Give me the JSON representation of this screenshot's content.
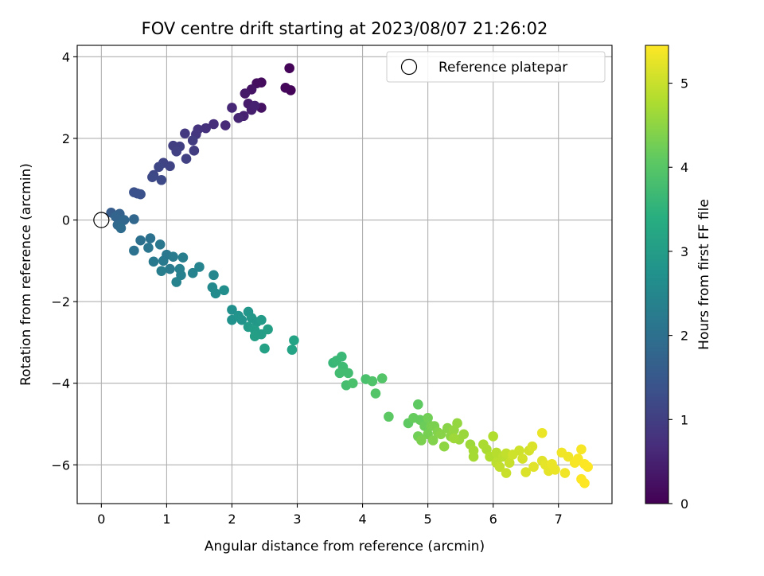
{
  "chart_data": {
    "type": "scatter",
    "title": "FOV centre drift starting at 2023/08/07 21:26:02",
    "xlabel": "Angular distance from reference (arcmin)",
    "ylabel": "Rotation from reference (arcmin)",
    "xlim": [
      -0.37,
      7.82
    ],
    "ylim": [
      -6.95,
      4.28
    ],
    "xticks": [
      "0",
      "1",
      "2",
      "3",
      "4",
      "5",
      "6",
      "7"
    ],
    "yticks": [
      "−6",
      "−4",
      "−2",
      "0",
      "2",
      "4"
    ],
    "grid": true,
    "legend": {
      "placement": "top-right",
      "entries": [
        "Reference platepar"
      ]
    },
    "reference_point": {
      "x": 0,
      "y": 0
    },
    "colormap": "viridis",
    "colorbar": {
      "label": "Hours from first FF file",
      "range": [
        0,
        5.45
      ],
      "ticks": [
        "0",
        "1",
        "2",
        "3",
        "4",
        "5"
      ]
    },
    "series": [
      {
        "points": [
          [
            2.88,
            3.72,
            0.05
          ],
          [
            2.9,
            3.18,
            0.05
          ],
          [
            2.82,
            3.24,
            0.1
          ],
          [
            2.45,
            3.37,
            0.15
          ],
          [
            2.38,
            3.35,
            0.2
          ],
          [
            2.45,
            2.75,
            0.25
          ],
          [
            2.3,
            3.2,
            0.3
          ],
          [
            2.2,
            3.1,
            0.35
          ],
          [
            2.25,
            2.85,
            0.4
          ],
          [
            2.3,
            2.7,
            0.45
          ],
          [
            2.18,
            2.55,
            0.5
          ],
          [
            2.35,
            2.8,
            0.5
          ],
          [
            2.1,
            2.5,
            0.55
          ],
          [
            2.0,
            2.75,
            0.6
          ],
          [
            1.9,
            2.32,
            0.65
          ],
          [
            1.72,
            2.35,
            0.7
          ],
          [
            1.6,
            2.25,
            0.75
          ],
          [
            1.48,
            2.22,
            0.8
          ],
          [
            1.45,
            2.1,
            0.85
          ],
          [
            1.28,
            2.12,
            0.9
          ],
          [
            1.4,
            1.95,
            0.95
          ],
          [
            1.42,
            1.7,
            0.95
          ],
          [
            1.2,
            1.8,
            1.0
          ],
          [
            1.1,
            1.82,
            1.0
          ],
          [
            1.15,
            1.68,
            1.05
          ],
          [
            1.3,
            1.5,
            1.05
          ],
          [
            0.95,
            1.4,
            1.1
          ],
          [
            1.05,
            1.32,
            1.1
          ],
          [
            0.88,
            1.3,
            1.15
          ],
          [
            0.8,
            1.1,
            1.15
          ],
          [
            0.78,
            1.05,
            1.2
          ],
          [
            0.92,
            0.98,
            1.2
          ],
          [
            0.55,
            0.65,
            1.3
          ],
          [
            0.5,
            0.68,
            1.35
          ],
          [
            0.6,
            0.63,
            1.35
          ],
          [
            0.15,
            0.18,
            1.6
          ],
          [
            0.28,
            0.15,
            1.7
          ],
          [
            0.22,
            0.08,
            1.75
          ],
          [
            0.35,
            0.0,
            1.8
          ],
          [
            0.5,
            0.02,
            1.8
          ],
          [
            0.25,
            -0.12,
            1.85
          ],
          [
            0.3,
            -0.2,
            1.9
          ],
          [
            0.6,
            -0.5,
            2.0
          ],
          [
            0.75,
            -0.45,
            2.05
          ],
          [
            0.5,
            -0.75,
            2.05
          ],
          [
            0.72,
            -0.68,
            2.1
          ],
          [
            0.9,
            -0.6,
            2.15
          ],
          [
            1.0,
            -0.85,
            2.15
          ],
          [
            0.8,
            -1.02,
            2.2
          ],
          [
            0.95,
            -1.0,
            2.2
          ],
          [
            1.1,
            -0.9,
            2.25
          ],
          [
            1.05,
            -1.2,
            2.25
          ],
          [
            0.92,
            -1.25,
            2.3
          ],
          [
            1.25,
            -0.92,
            2.3
          ],
          [
            1.2,
            -1.2,
            2.35
          ],
          [
            1.22,
            -1.35,
            2.35
          ],
          [
            1.15,
            -1.52,
            2.4
          ],
          [
            1.4,
            -1.3,
            2.4
          ],
          [
            1.5,
            -1.15,
            2.45
          ],
          [
            1.72,
            -1.35,
            2.5
          ],
          [
            1.7,
            -1.65,
            2.55
          ],
          [
            1.75,
            -1.8,
            2.6
          ],
          [
            1.88,
            -1.72,
            2.65
          ],
          [
            2.0,
            -2.2,
            2.7
          ],
          [
            2.0,
            -2.45,
            2.75
          ],
          [
            2.1,
            -2.35,
            2.8
          ],
          [
            2.15,
            -2.45,
            2.8
          ],
          [
            2.25,
            -2.25,
            2.85
          ],
          [
            2.3,
            -2.4,
            2.9
          ],
          [
            2.38,
            -2.5,
            2.9
          ],
          [
            2.25,
            -2.62,
            2.95
          ],
          [
            2.45,
            -2.45,
            2.95
          ],
          [
            2.35,
            -2.7,
            3.0
          ],
          [
            2.45,
            -2.8,
            3.0
          ],
          [
            2.55,
            -2.68,
            3.05
          ],
          [
            2.35,
            -2.85,
            3.05
          ],
          [
            2.5,
            -3.15,
            3.1
          ],
          [
            2.92,
            -3.18,
            3.15
          ],
          [
            2.95,
            -2.95,
            3.15
          ],
          [
            3.55,
            -3.5,
            3.6
          ],
          [
            3.6,
            -3.45,
            3.65
          ],
          [
            3.68,
            -3.35,
            3.65
          ],
          [
            3.7,
            -3.6,
            3.7
          ],
          [
            3.65,
            -3.75,
            3.75
          ],
          [
            3.78,
            -3.75,
            3.75
          ],
          [
            3.75,
            -4.05,
            3.8
          ],
          [
            3.85,
            -4.0,
            3.85
          ],
          [
            4.05,
            -3.9,
            3.85
          ],
          [
            4.15,
            -3.95,
            3.9
          ],
          [
            4.3,
            -3.88,
            3.95
          ],
          [
            4.2,
            -4.25,
            3.95
          ],
          [
            4.4,
            -4.82,
            4.05
          ],
          [
            4.85,
            -4.52,
            4.1
          ],
          [
            4.7,
            -4.98,
            4.1
          ],
          [
            4.78,
            -4.85,
            4.15
          ],
          [
            4.88,
            -4.9,
            4.15
          ],
          [
            4.95,
            -5.05,
            4.2
          ],
          [
            4.85,
            -5.3,
            4.25
          ],
          [
            5.0,
            -4.85,
            4.25
          ],
          [
            5.05,
            -5.05,
            4.3
          ],
          [
            5.0,
            -5.25,
            4.3
          ],
          [
            5.1,
            -5.05,
            4.35
          ],
          [
            4.9,
            -5.4,
            4.35
          ],
          [
            5.08,
            -5.4,
            4.4
          ],
          [
            5.15,
            -5.2,
            4.4
          ],
          [
            5.2,
            -5.25,
            4.45
          ],
          [
            5.3,
            -5.1,
            4.45
          ],
          [
            5.25,
            -5.55,
            4.5
          ],
          [
            5.35,
            -5.3,
            4.5
          ],
          [
            5.4,
            -5.15,
            4.55
          ],
          [
            5.45,
            -4.98,
            4.55
          ],
          [
            5.48,
            -5.38,
            4.6
          ],
          [
            5.55,
            -5.25,
            4.6
          ],
          [
            5.4,
            -5.35,
            4.65
          ],
          [
            5.65,
            -5.5,
            4.65
          ],
          [
            5.7,
            -5.65,
            4.7
          ],
          [
            5.7,
            -5.8,
            4.7
          ],
          [
            5.85,
            -5.5,
            4.75
          ],
          [
            5.9,
            -5.62,
            4.75
          ],
          [
            5.95,
            -5.8,
            4.8
          ],
          [
            6.0,
            -5.3,
            4.8
          ],
          [
            6.05,
            -5.7,
            4.85
          ],
          [
            6.1,
            -5.82,
            4.85
          ],
          [
            6.05,
            -5.95,
            4.9
          ],
          [
            6.15,
            -5.8,
            4.9
          ],
          [
            6.2,
            -5.72,
            4.95
          ],
          [
            6.1,
            -6.05,
            4.95
          ],
          [
            6.2,
            -6.2,
            5.0
          ],
          [
            6.25,
            -5.95,
            5.0
          ],
          [
            6.3,
            -5.75,
            5.05
          ],
          [
            6.4,
            -5.65,
            5.05
          ],
          [
            6.45,
            -5.85,
            5.1
          ],
          [
            6.55,
            -5.65,
            5.1
          ],
          [
            6.6,
            -5.55,
            5.15
          ],
          [
            6.5,
            -6.18,
            5.15
          ],
          [
            6.62,
            -6.05,
            5.2
          ],
          [
            6.75,
            -5.9,
            5.2
          ],
          [
            6.8,
            -6.0,
            5.25
          ],
          [
            6.85,
            -6.15,
            5.25
          ],
          [
            6.9,
            -5.98,
            5.3
          ],
          [
            6.95,
            -6.12,
            5.3
          ],
          [
            6.75,
            -5.22,
            5.3
          ],
          [
            7.05,
            -5.7,
            5.35
          ],
          [
            7.15,
            -5.8,
            5.35
          ],
          [
            7.1,
            -6.2,
            5.35
          ],
          [
            7.25,
            -5.95,
            5.4
          ],
          [
            7.3,
            -5.85,
            5.4
          ],
          [
            7.35,
            -5.62,
            5.4
          ],
          [
            7.4,
            -5.98,
            5.45
          ],
          [
            7.45,
            -6.05,
            5.45
          ],
          [
            7.35,
            -6.35,
            5.45
          ],
          [
            7.4,
            -6.45,
            5.45
          ]
        ]
      }
    ]
  }
}
